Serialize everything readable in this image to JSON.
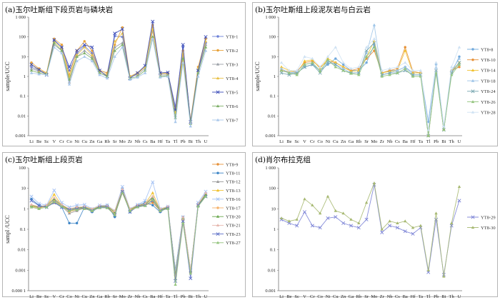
{
  "chart_data": [
    {
      "type": "line",
      "title": "(a)玉尔吐斯组下段页岩与磷块岩",
      "ylabel": "sample/UCC",
      "xlabel": "",
      "yscale": "log",
      "ylim": [
        0.001,
        1000
      ],
      "yticks": [
        "0.001",
        "0.01",
        "0.1",
        "1",
        "10",
        "100",
        "1 000"
      ],
      "grid": false,
      "legend_position": "right",
      "categories": [
        "Li",
        "Be",
        "Sc",
        "V",
        "Cr",
        "Co",
        "Ni",
        "Cu",
        "Zn",
        "Ga",
        "Rb",
        "Sr",
        "Mo",
        "Zr",
        "Nb",
        "Cs",
        "Ba",
        "Hf",
        "Ta",
        "Tl",
        "Pb",
        "Bi",
        "Th",
        "U"
      ],
      "series": [
        {
          "name": "YT8-1",
          "color": "#6b7fd7",
          "marker": "o",
          "values": [
            3,
            2,
            1.5,
            70,
            30,
            2,
            15,
            35,
            15,
            2,
            1.5,
            110,
            100,
            1,
            1.5,
            3,
            300,
            1.5,
            1.5,
            0.03,
            30,
            0.005,
            2,
            50
          ]
        },
        {
          "name": "YT8-2",
          "color": "#e8a23a",
          "marker": "o",
          "values": [
            5,
            2.5,
            1.5,
            80,
            40,
            1.2,
            20,
            60,
            20,
            2,
            1.5,
            40,
            300,
            1,
            1.5,
            3,
            400,
            1.5,
            1.5,
            0.02,
            20,
            0.006,
            3,
            80
          ]
        },
        {
          "name": "YT8-3",
          "color": "#9aa0a6",
          "marker": "^",
          "values": [
            2.5,
            1.8,
            1.4,
            40,
            20,
            0.5,
            10,
            20,
            10,
            1.5,
            1,
            30,
            50,
            1,
            1.2,
            2.5,
            200,
            1.2,
            1.2,
            0.01,
            10,
            0.004,
            1.5,
            40
          ]
        },
        {
          "name": "YT8-4",
          "color": "#e8c24a",
          "marker": "^",
          "values": [
            4,
            2,
            1.5,
            60,
            25,
            1,
            12,
            30,
            12,
            1.8,
            1.2,
            60,
            150,
            1,
            1.4,
            3,
            250,
            1.4,
            1.4,
            0.015,
            15,
            0.005,
            2.5,
            60
          ]
        },
        {
          "name": "YT8-5",
          "color": "#3b4bb8",
          "marker": "x",
          "values": [
            4,
            2.2,
            1.2,
            70,
            30,
            3,
            20,
            40,
            30,
            2,
            1,
            150,
            250,
            0.8,
            1.5,
            3.5,
            600,
            1.5,
            1.6,
            0.02,
            40,
            0.005,
            2,
            100
          ]
        },
        {
          "name": "YT8-6",
          "color": "#7fb069",
          "marker": "^",
          "values": [
            2,
            1.5,
            1.3,
            50,
            20,
            0.7,
            10,
            15,
            8,
            1.5,
            1,
            20,
            40,
            0.8,
            1,
            2,
            100,
            1,
            1.1,
            0.008,
            8,
            0.004,
            1.5,
            30
          ]
        },
        {
          "name": "YT8-7",
          "color": "#a9c7ea",
          "marker": "^",
          "values": [
            1.5,
            1.3,
            1.2,
            30,
            15,
            0.4,
            6,
            10,
            6,
            1.2,
            0.8,
            10,
            30,
            0.7,
            0.9,
            1.5,
            80,
            0.9,
            1,
            0.005,
            5,
            0.003,
            1,
            20
          ]
        }
      ]
    },
    {
      "type": "line",
      "title": "(b)玉尔吐斯组上段泥灰岩与白云岩",
      "ylabel": "sample/UCC",
      "xlabel": "",
      "yscale": "log",
      "ylim": [
        0.001,
        1000
      ],
      "yticks": [
        "0.001",
        "0.01",
        "0.1",
        "1",
        "10",
        "100",
        "1 000"
      ],
      "grid": false,
      "legend_position": "right",
      "categories": [
        "Li",
        "Be",
        "Sc",
        "V",
        "Cr",
        "Co",
        "Ni",
        "Cu",
        "Zn",
        "Ga",
        "Rb",
        "Sr",
        "Mo",
        "Zr",
        "Nb",
        "Cs",
        "Ba",
        "Hf",
        "Ta",
        "Tl",
        "Pb",
        "Bi",
        "Th",
        "U"
      ],
      "series": [
        {
          "name": "YT8-8",
          "color": "#6fa8dc",
          "marker": "o",
          "values": [
            2,
            1.5,
            1.5,
            3,
            4,
            2,
            4,
            8,
            4,
            2,
            2,
            5,
            40,
            1.5,
            2,
            2,
            3,
            1.5,
            1.5,
            0.005,
            4,
            0.003,
            1.5,
            10
          ]
        },
        {
          "name": "YT8-10",
          "color": "#e69138",
          "marker": "o",
          "values": [
            2,
            1.8,
            1.8,
            5,
            6,
            3,
            6,
            5,
            3,
            2,
            2.5,
            8,
            20,
            1.5,
            2,
            2.5,
            30,
            1.8,
            1.5,
            0.001,
            2,
            0.002,
            2,
            3
          ]
        },
        {
          "name": "YT8-14",
          "color": "#f1c232",
          "marker": "^",
          "values": [
            3,
            2,
            1.5,
            6,
            7,
            2.5,
            8,
            5,
            3,
            1.8,
            2,
            10,
            60,
            1.5,
            1.8,
            2,
            20,
            1.5,
            1.5,
            0.001,
            2,
            0.002,
            1.8,
            5
          ]
        },
        {
          "name": "YT8-18",
          "color": "#9fc5e8",
          "marker": "^",
          "values": [
            2.5,
            1.5,
            1.8,
            4,
            5,
            2,
            6,
            4,
            2.5,
            1.5,
            1.5,
            15,
            400,
            1.2,
            1.5,
            2,
            3,
            1.2,
            1.2,
            0.001,
            3,
            0.002,
            2,
            8
          ]
        },
        {
          "name": "YT8-24",
          "color": "#76a5af",
          "marker": "x",
          "values": [
            1.5,
            1.2,
            1.5,
            3,
            4,
            1.5,
            5,
            4,
            2,
            1.5,
            1.5,
            20,
            50,
            1.2,
            1.5,
            1.5,
            2,
            1.2,
            1.2,
            0.001,
            2,
            0.002,
            1.5,
            5
          ]
        },
        {
          "name": "YT8-26",
          "color": "#93c47d",
          "marker": "^",
          "values": [
            2,
            1.5,
            1.2,
            4,
            5,
            1.8,
            7,
            3,
            2,
            1.4,
            1.2,
            10,
            30,
            1,
            1.2,
            1.5,
            2.5,
            1,
            1,
            0.001,
            1.5,
            0.002,
            1.2,
            4
          ]
        },
        {
          "name": "YT8-28",
          "color": "#cfe2f3",
          "marker": "^",
          "values": [
            5,
            2,
            2,
            10,
            8,
            3,
            10,
            30,
            5,
            2.5,
            3,
            30,
            80,
            2,
            2.5,
            3,
            5,
            2,
            2,
            0.002,
            5,
            0.003,
            3,
            30
          ]
        }
      ]
    },
    {
      "type": "line",
      "title": "(c)玉尔吐斯组上段页岩",
      "ylabel": "sampl /UCC",
      "xlabel": "",
      "yscale": "log",
      "ylim": [
        0.0001,
        100
      ],
      "yticks": [
        "0.000 1",
        "0.001",
        "0.01",
        "0.1",
        "1",
        "10",
        "100"
      ],
      "grid": false,
      "legend_position": "right",
      "categories": [
        "Li",
        "Be",
        "Sc",
        "V",
        "Cr",
        "Co",
        "Ni",
        "Cu",
        "Zn",
        "Ga",
        "Rb",
        "Sr",
        "Mo",
        "Zr",
        "Nb",
        "Cs",
        "Ba",
        "Hf",
        "Ta",
        "Tl",
        "Pb",
        "Bi",
        "Th",
        "U"
      ],
      "series": [
        {
          "name": "YT8-9",
          "color": "#e69138",
          "marker": "o",
          "values": [
            1.5,
            1.2,
            1.3,
            2,
            1.5,
            1,
            1.2,
            1,
            0.8,
            1.2,
            1.2,
            0.5,
            6,
            0.8,
            1.5,
            1.5,
            2,
            0.8,
            1.2,
            0.001,
            0.3,
            0.001,
            1.5,
            5
          ]
        },
        {
          "name": "YT8-11",
          "color": "#3d85c6",
          "marker": "o",
          "values": [
            3,
            1.5,
            1.2,
            2.5,
            1.2,
            0.2,
            0.2,
            1.2,
            0.7,
            1.3,
            1.5,
            0.4,
            10,
            0.7,
            1.5,
            2,
            1.5,
            0.7,
            1.2,
            0.001,
            0.4,
            0.001,
            1.8,
            4
          ]
        },
        {
          "name": "YT8-12",
          "color": "#999999",
          "marker": "^",
          "values": [
            1.2,
            1,
            1.5,
            3,
            1.3,
            0.6,
            0.8,
            1.1,
            0.8,
            1.2,
            1.2,
            0.6,
            8,
            0.8,
            1.3,
            1.5,
            4,
            0.8,
            1.1,
            0.0008,
            0.3,
            0.0008,
            1.4,
            6
          ]
        },
        {
          "name": "YT8-13",
          "color": "#f1c232",
          "marker": "^",
          "values": [
            1.5,
            1.1,
            1.4,
            5,
            1.5,
            0.8,
            1,
            1.3,
            0.9,
            1.3,
            1.3,
            0.7,
            9,
            0.9,
            1.4,
            1.8,
            6,
            0.9,
            1.2,
            0.0007,
            0.3,
            0.0009,
            1.6,
            5
          ]
        },
        {
          "name": "YT8-16",
          "color": "#a4c2f4",
          "marker": "x",
          "values": [
            4,
            1.8,
            1.5,
            8,
            2,
            1.2,
            1.5,
            1.6,
            1,
            1.5,
            1.5,
            0.8,
            12,
            1,
            1.6,
            2.5,
            20,
            1,
            1.3,
            0.0009,
            0.4,
            0.001,
            2,
            7
          ]
        },
        {
          "name": "YT8-17",
          "color": "#f6b26b",
          "marker": "o",
          "values": [
            1.3,
            1.1,
            1.3,
            2.5,
            1.4,
            0.7,
            0.9,
            1.1,
            0.8,
            1.2,
            1.2,
            0.6,
            7,
            0.8,
            1.3,
            1.6,
            3,
            0.8,
            1.1,
            0.0005,
            0.3,
            0.0008,
            1.4,
            5
          ]
        },
        {
          "name": "YT8-20",
          "color": "#6aa84f",
          "marker": "^",
          "values": [
            1.4,
            1.2,
            1.4,
            3,
            1.5,
            0.9,
            1.1,
            1.2,
            0.9,
            1.3,
            1.3,
            0.7,
            8,
            0.9,
            1.4,
            1.7,
            3.5,
            0.9,
            1.2,
            0.0006,
            0.35,
            0.0009,
            1.5,
            5
          ]
        },
        {
          "name": "YT8-21",
          "color": "#e6b8af",
          "marker": "^",
          "values": [
            1.6,
            1.3,
            1.5,
            3.5,
            1.6,
            1,
            1.2,
            1.3,
            1,
            1.4,
            1.4,
            0.8,
            9,
            1,
            1.5,
            1.8,
            4,
            1,
            1.3,
            0.0004,
            0.4,
            0.001,
            1.7,
            6
          ]
        },
        {
          "name": "YT8-23",
          "color": "#5b6fc7",
          "marker": "x",
          "values": [
            2.5,
            1.4,
            1.2,
            2,
            1.2,
            0.9,
            1,
            1.1,
            0.8,
            1.2,
            1.2,
            0.5,
            7,
            0.7,
            1.3,
            1.5,
            2.5,
            0.8,
            1.1,
            0.0003,
            0.25,
            0.0004,
            1.5,
            4
          ]
        },
        {
          "name": "YT8-27",
          "color": "#93c47d",
          "marker": "^",
          "values": [
            1.2,
            1,
            1.2,
            2.2,
            1.3,
            0.8,
            0.9,
            1,
            0.8,
            1.1,
            1.1,
            0.5,
            6,
            0.8,
            1.2,
            1.4,
            2.8,
            0.8,
            1,
            0.0002,
            0.2,
            0.0007,
            1.3,
            4
          ]
        }
      ]
    },
    {
      "type": "line",
      "title": "(d)肖尔布拉克组",
      "ylabel": "",
      "xlabel": "",
      "yscale": "log",
      "ylim": [
        0.001,
        1000
      ],
      "yticks": [
        "0.001",
        "0.01",
        "0.1",
        "1",
        "10",
        "100",
        "1 000"
      ],
      "grid": false,
      "legend_position": "right",
      "categories": [
        "Li",
        "Be",
        "Sc",
        "V",
        "Cr",
        "Co",
        "Ni",
        "Cu",
        "Zn",
        "Ga",
        "Rb",
        "Sr",
        "Mo",
        "Zr",
        "Nb",
        "Cs",
        "Ba",
        "Hf",
        "Ta",
        "Tl",
        "Pb",
        "Bi",
        "Th",
        "U"
      ],
      "series": [
        {
          "name": "YT8-29",
          "color": "#7b83d6",
          "marker": "x",
          "values": [
            3,
            2,
            1.5,
            7,
            1.5,
            1.2,
            3.5,
            4,
            2,
            1.5,
            1.2,
            3,
            150,
            0.7,
            1.5,
            1.2,
            0.8,
            0.6,
            1.2,
            0.008,
            3,
            0.006,
            1.5,
            25
          ]
        },
        {
          "name": "YT8-30",
          "color": "#a6b870",
          "marker": "^",
          "values": [
            3.5,
            2.5,
            3,
            30,
            15,
            6,
            40,
            8,
            6,
            3,
            2,
            20,
            180,
            1,
            2.5,
            2,
            2.5,
            1.2,
            1.5,
            0.01,
            6,
            0.005,
            2,
            120
          ]
        }
      ]
    }
  ]
}
